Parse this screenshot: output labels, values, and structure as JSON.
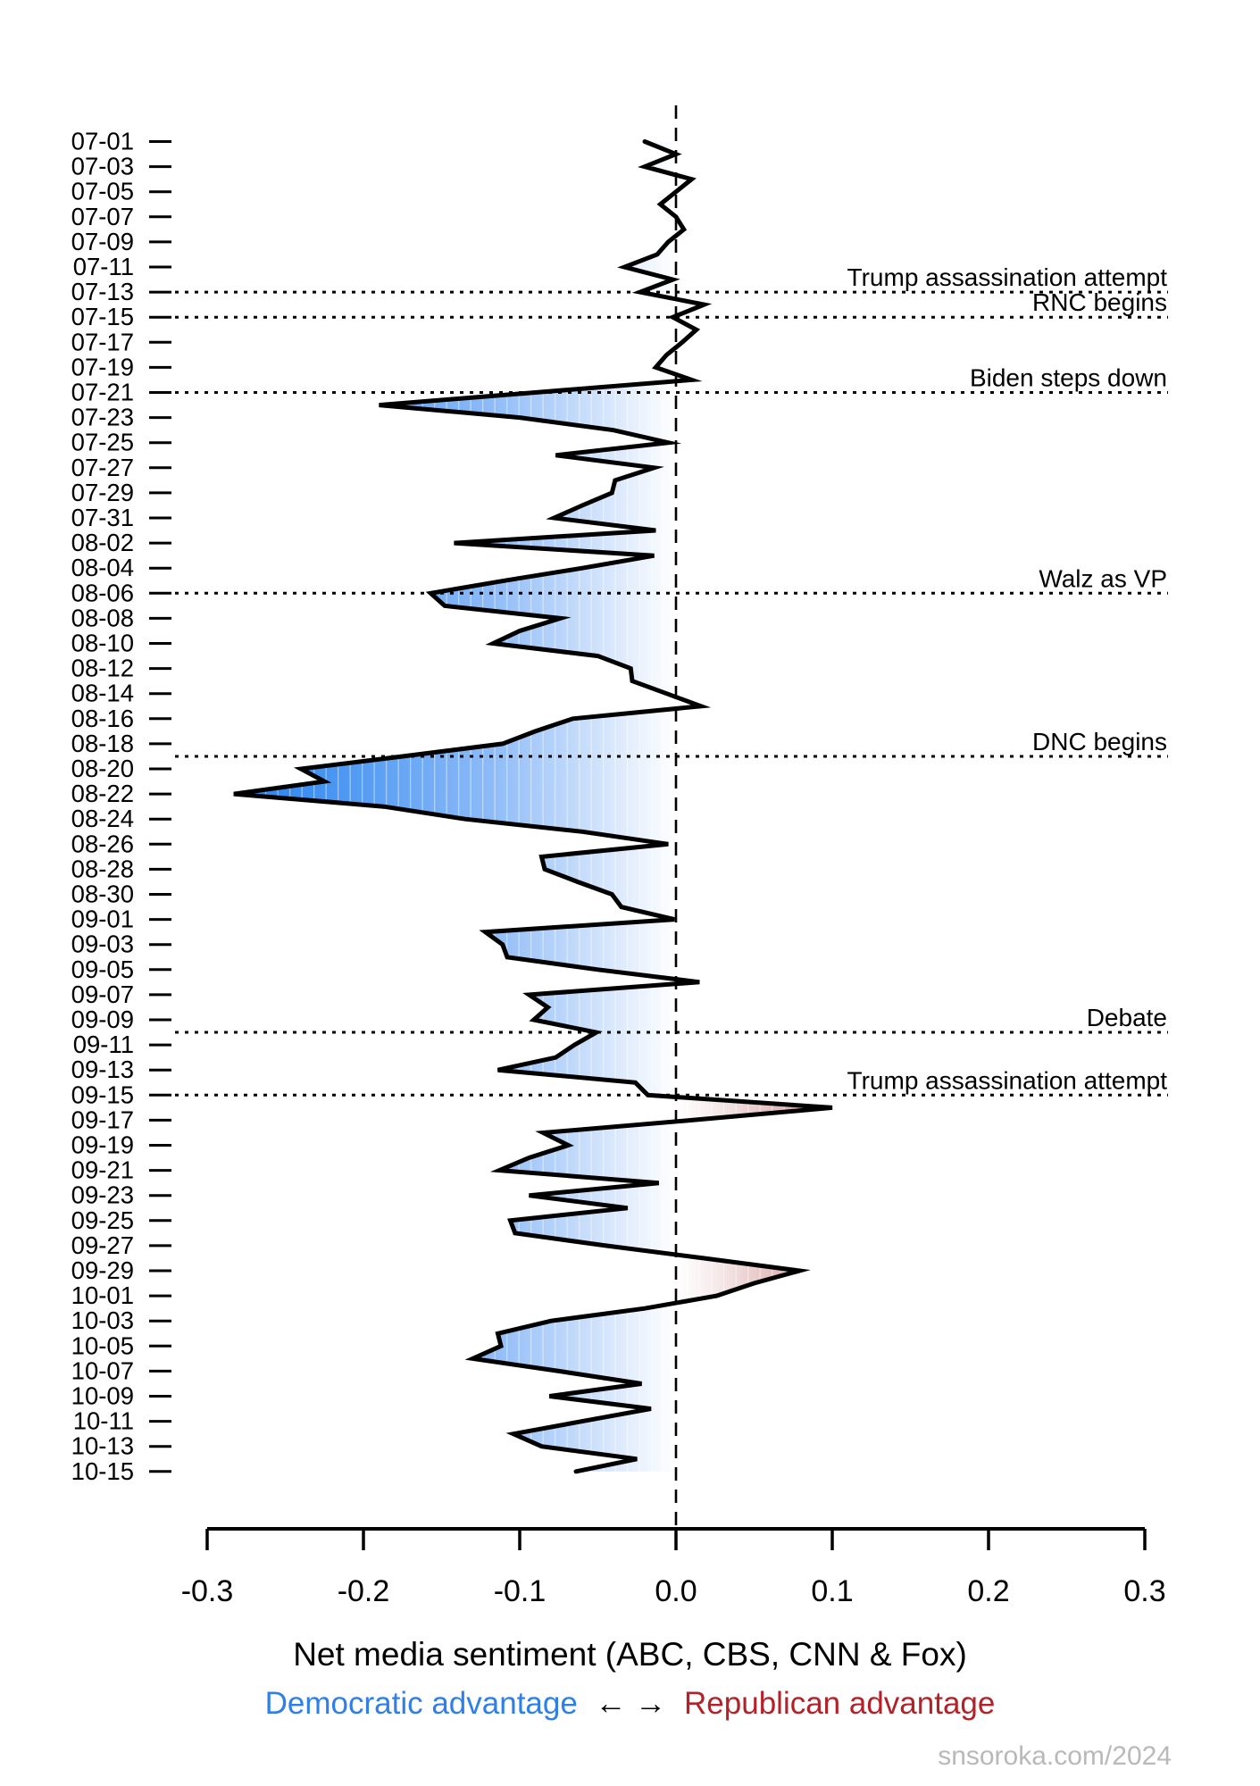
{
  "watermark": "snsoroka.com/2024",
  "chart_data": {
    "type": "area",
    "title": "Net media sentiment (ABC, CBS, CNN & Fox)",
    "legend": {
      "left_label": "Democratic advantage",
      "arrows": "← →",
      "right_label": "Republican advantage"
    },
    "x_axis": {
      "range": [
        -0.3,
        0.3
      ],
      "ticks": [
        -0.3,
        -0.2,
        -0.1,
        0.0,
        0.1,
        0.2,
        0.3
      ],
      "tick_labels": [
        "-0.3",
        "-0.2",
        "-0.1",
        "0.0",
        "0.1",
        "0.2",
        "0.3"
      ]
    },
    "y_axis": {
      "tick_labels": [
        "07-01",
        "07-03",
        "07-05",
        "07-07",
        "07-09",
        "07-11",
        "07-13",
        "07-15",
        "07-17",
        "07-19",
        "07-21",
        "07-23",
        "07-25",
        "07-27",
        "07-29",
        "07-31",
        "08-02",
        "08-04",
        "08-06",
        "08-08",
        "08-10",
        "08-12",
        "08-14",
        "08-16",
        "08-18",
        "08-20",
        "08-22",
        "08-24",
        "08-26",
        "08-28",
        "08-30",
        "09-01",
        "09-03",
        "09-05",
        "09-07",
        "09-09",
        "09-11",
        "09-13",
        "09-15",
        "09-17",
        "09-19",
        "09-21",
        "09-23",
        "09-25",
        "09-27",
        "09-29",
        "10-01",
        "10-03",
        "10-05",
        "10-07",
        "10-09",
        "10-11",
        "10-13",
        "10-15"
      ]
    },
    "zero_line": 0.0,
    "annotations": [
      {
        "date": "07-13",
        "label": "Trump assassination attempt"
      },
      {
        "date": "07-15",
        "label": "RNC begins"
      },
      {
        "date": "07-21",
        "label": "Biden steps down"
      },
      {
        "date": "08-06",
        "label": "Walz as VP"
      },
      {
        "date": "08-19",
        "label": "DNC begins"
      },
      {
        "date": "09-10",
        "label": "Debate"
      },
      {
        "date": "09-15",
        "label": "Trump assassination attempt"
      }
    ],
    "series": [
      {
        "name": "net_media_sentiment",
        "dates": [
          "07-01",
          "07-02",
          "07-03",
          "07-04",
          "07-05",
          "07-06",
          "07-07",
          "07-08",
          "07-09",
          "07-10",
          "07-11",
          "07-12",
          "07-13",
          "07-14",
          "07-15",
          "07-16",
          "07-17",
          "07-18",
          "07-19",
          "07-20",
          "07-21",
          "07-22",
          "07-23",
          "07-24",
          "07-25",
          "07-26",
          "07-27",
          "07-28",
          "07-29",
          "07-30",
          "07-31",
          "08-01",
          "08-02",
          "08-03",
          "08-04",
          "08-05",
          "08-06",
          "08-07",
          "08-08",
          "08-09",
          "08-10",
          "08-11",
          "08-12",
          "08-13",
          "08-14",
          "08-15",
          "08-16",
          "08-17",
          "08-18",
          "08-19",
          "08-20",
          "08-21",
          "08-22",
          "08-23",
          "08-24",
          "08-25",
          "08-26",
          "08-27",
          "08-28",
          "08-29",
          "08-30",
          "08-31",
          "09-01",
          "09-02",
          "09-03",
          "09-04",
          "09-05",
          "09-06",
          "09-07",
          "09-08",
          "09-09",
          "09-10",
          "09-11",
          "09-12",
          "09-13",
          "09-14",
          "09-15",
          "09-16",
          "09-17",
          "09-18",
          "09-19",
          "09-20",
          "09-21",
          "09-22",
          "09-23",
          "09-24",
          "09-25",
          "09-26",
          "09-27",
          "09-28",
          "09-29",
          "09-30",
          "10-01",
          "10-02",
          "10-03",
          "10-04",
          "10-05",
          "10-06",
          "10-07",
          "10-08",
          "10-09",
          "10-10",
          "10-11",
          "10-12",
          "10-13",
          "10-14",
          "10-15"
        ],
        "values": [
          -0.02,
          0.0,
          -0.02,
          0.01,
          0.0,
          -0.01,
          0.0,
          0.005,
          -0.005,
          -0.012,
          -0.033,
          -0.002,
          -0.023,
          0.018,
          -0.002,
          0.013,
          0.004,
          -0.006,
          -0.013,
          0.01,
          -0.09,
          -0.19,
          -0.1,
          -0.04,
          -0.005,
          -0.077,
          -0.014,
          -0.039,
          -0.041,
          -0.06,
          -0.078,
          -0.013,
          -0.142,
          -0.014,
          -0.06,
          -0.11,
          -0.157,
          -0.148,
          -0.074,
          -0.1,
          -0.117,
          -0.05,
          -0.029,
          -0.028,
          -0.006,
          0.016,
          -0.066,
          -0.09,
          -0.111,
          -0.175,
          -0.24,
          -0.225,
          -0.283,
          -0.187,
          -0.135,
          -0.06,
          -0.005,
          -0.086,
          -0.084,
          -0.063,
          -0.041,
          -0.035,
          -0.001,
          -0.122,
          -0.111,
          -0.108,
          -0.05,
          0.015,
          -0.094,
          -0.082,
          -0.091,
          -0.051,
          -0.065,
          -0.077,
          -0.114,
          -0.026,
          -0.018,
          0.1,
          0.01,
          -0.085,
          -0.069,
          -0.094,
          -0.113,
          -0.011,
          -0.094,
          -0.031,
          -0.106,
          -0.103,
          -0.045,
          0.018,
          0.079,
          0.05,
          0.026,
          -0.02,
          -0.08,
          -0.114,
          -0.112,
          -0.13,
          -0.075,
          -0.022,
          -0.081,
          -0.016,
          -0.06,
          -0.104,
          -0.086,
          -0.025,
          -0.064
        ]
      }
    ],
    "colors": {
      "dem_deep_blue": "#2a80ef",
      "rep_deep_red": "#a84848",
      "legend_blue": "#2f7fe8",
      "legend_red": "#b22228",
      "curve_black": "#000000",
      "watermark_gray": "#b9b9b9"
    },
    "layout": {
      "grid": "off",
      "legend_position": "bottom",
      "annotation_lines": "dotted",
      "zero_line_style": "dashed"
    }
  }
}
